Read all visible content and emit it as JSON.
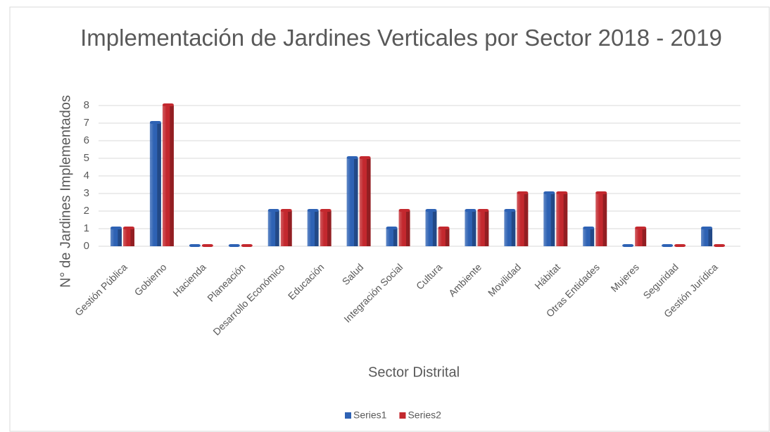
{
  "chart_data": {
    "type": "bar",
    "title": "Implementación de Jardines Verticales por Sector  2018 - 2019",
    "xlabel": "Sector Distrital",
    "ylabel": "N° de Jardines Implementados",
    "categories": [
      "Gestión Pública",
      "Gobierno",
      "Hacienda",
      "Planeación",
      "Desarrollo Económico",
      "Educación",
      "Salud",
      "Integración Social",
      "Cultura",
      "Ambiente",
      "Movilidad",
      "Hábitat",
      "Otras Entidades",
      "Mujeres",
      "Seguridad",
      "Gestión Jurídica"
    ],
    "series": [
      {
        "name": "Series1",
        "color": "#2e62b4",
        "values": [
          1,
          7,
          0,
          0,
          2,
          2,
          5,
          1,
          2,
          2,
          2,
          3,
          1,
          0,
          0,
          1
        ]
      },
      {
        "name": "Series2",
        "color": "#c3282e",
        "values": [
          1,
          8,
          0,
          0,
          2,
          2,
          5,
          2,
          1,
          2,
          3,
          3,
          3,
          1,
          0,
          0
        ]
      }
    ],
    "ylim": [
      0,
      8
    ],
    "yticks": [
      0,
      1,
      2,
      3,
      4,
      5,
      6,
      7,
      8
    ],
    "grid": true,
    "legend": "bottom"
  }
}
